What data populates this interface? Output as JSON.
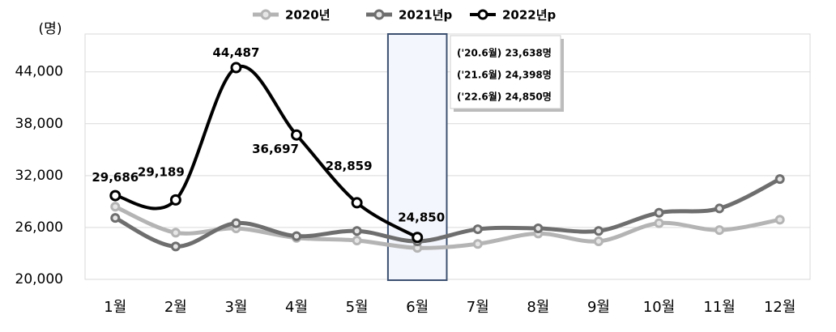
{
  "chart_data": {
    "type": "line",
    "y_label": "(명)",
    "categories": [
      "1월",
      "2월",
      "3월",
      "4월",
      "5월",
      "6월",
      "7월",
      "8월",
      "9월",
      "10월",
      "11월",
      "12월"
    ],
    "series": [
      {
        "name": "2020년",
        "color": "#b4b4b4",
        "values": [
          28400,
          25400,
          25900,
          24800,
          24500,
          23638,
          24100,
          25300,
          24400,
          26500,
          25700,
          26900
        ]
      },
      {
        "name": "2021년p",
        "color": "#6e6e6e",
        "values": [
          27100,
          23800,
          26500,
          25000,
          25600,
          24398,
          25800,
          25900,
          25600,
          27700,
          28200,
          31600
        ]
      },
      {
        "name": "2022년p",
        "color": "#000000",
        "values": [
          29686,
          29189,
          44487,
          36697,
          28859,
          24850,
          null,
          null,
          null,
          null,
          null,
          null
        ],
        "value_labels": [
          "29,686",
          "29,189",
          "44,487",
          "36,697",
          "28,859",
          "24,850",
          null,
          null,
          null,
          null,
          null,
          null
        ]
      }
    ],
    "annotations": [
      "('20.6월)  23,638명",
      "('21.6월)  24,398명",
      "('22.6월)  24,850명"
    ],
    "highlight_category": "6월",
    "ylim": [
      20000,
      48000
    ],
    "yticks": [
      {
        "value": 20000,
        "label": "20,000"
      },
      {
        "value": 26000,
        "label": "26,000"
      },
      {
        "value": 32000,
        "label": "32,000"
      },
      {
        "value": 38000,
        "label": "38,000"
      },
      {
        "value": 44000,
        "label": "44,000"
      }
    ],
    "grid": true,
    "legend": "top"
  }
}
